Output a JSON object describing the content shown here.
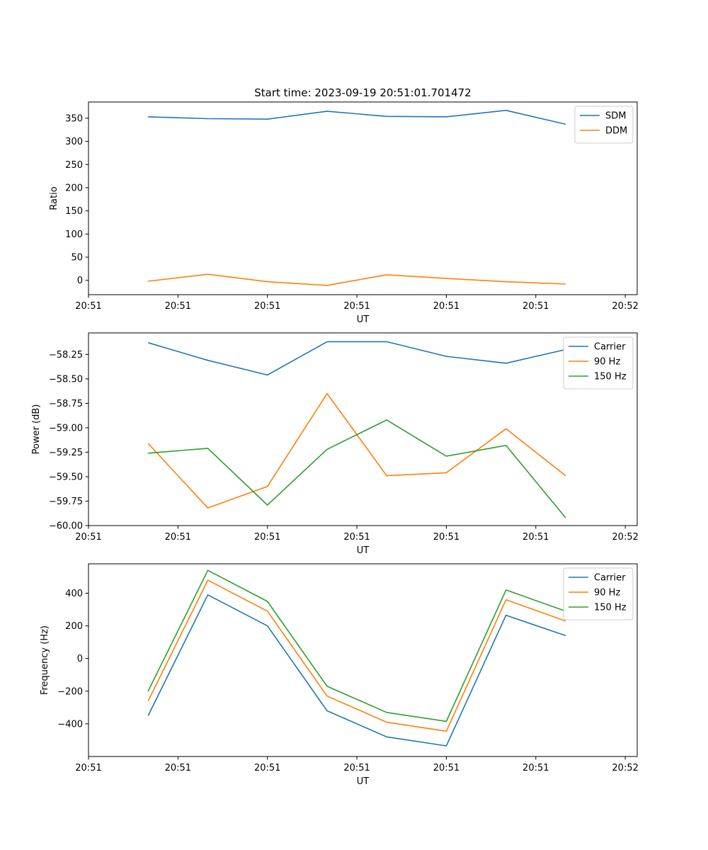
{
  "figure": {
    "title": "Start time: 2023-09-19 20:51:01.701472"
  },
  "colors": {
    "blue": "#1f77b4",
    "orange": "#ff7f0e",
    "green": "#2ca02c"
  },
  "chart_data": [
    {
      "type": "line",
      "title": "Start time: 2023-09-19 20:51:01.701472",
      "xlabel": "UT",
      "ylabel": "Ratio",
      "x": [
        1,
        2,
        3,
        4,
        5,
        6,
        7,
        8
      ],
      "xlim": [
        0,
        9.2
      ],
      "ylim": [
        -31,
        385
      ],
      "xticks": [
        0,
        1.5,
        3,
        4.5,
        6,
        7.5,
        9
      ],
      "xtick_labels": [
        "20:51",
        "20:51",
        "20:51",
        "20:51",
        "20:51",
        "20:51",
        "20:52"
      ],
      "yticks": [
        0,
        50,
        100,
        150,
        200,
        250,
        300,
        350
      ],
      "ytick_labels": [
        "0",
        "50",
        "100",
        "150",
        "200",
        "250",
        "300",
        "350"
      ],
      "legend": "top-right",
      "series": [
        {
          "name": "SDM",
          "color": "#1f77b4",
          "values": [
            353,
            349,
            348,
            365,
            354,
            353,
            367,
            337
          ]
        },
        {
          "name": "DDM",
          "color": "#ff7f0e",
          "values": [
            -2,
            13,
            -3,
            -11,
            12,
            4,
            -3,
            -8
          ]
        }
      ]
    },
    {
      "type": "line",
      "title": "",
      "xlabel": "UT",
      "ylabel": "Power (dB)",
      "x": [
        1,
        2,
        3,
        4,
        5,
        6,
        7,
        8
      ],
      "xlim": [
        0,
        9.2
      ],
      "ylim": [
        -60.0,
        -58.03
      ],
      "xticks": [
        0,
        1.5,
        3,
        4.5,
        6,
        7.5,
        9
      ],
      "xtick_labels": [
        "20:51",
        "20:51",
        "20:51",
        "20:51",
        "20:51",
        "20:51",
        "20:52"
      ],
      "yticks": [
        -60.0,
        -59.75,
        -59.5,
        -59.25,
        -59.0,
        -58.75,
        -58.5,
        -58.25
      ],
      "ytick_labels": [
        "−60.00",
        "−59.75",
        "−59.50",
        "−59.25",
        "−59.00",
        "−58.75",
        "−58.50",
        "−58.25"
      ],
      "legend": "top-right",
      "series": [
        {
          "name": "Carrier",
          "color": "#1f77b4",
          "values": [
            -58.13,
            -58.31,
            -58.46,
            -58.12,
            -58.12,
            -58.27,
            -58.34,
            -58.2
          ]
        },
        {
          "name": "90 Hz",
          "color": "#ff7f0e",
          "values": [
            -59.16,
            -59.82,
            -59.6,
            -58.65,
            -59.49,
            -59.46,
            -59.01,
            -59.49
          ]
        },
        {
          "name": "150 Hz",
          "color": "#2ca02c",
          "values": [
            -59.26,
            -59.21,
            -59.79,
            -59.22,
            -58.92,
            -59.29,
            -59.18,
            -59.92
          ]
        }
      ]
    },
    {
      "type": "line",
      "title": "",
      "xlabel": "UT",
      "ylabel": "Frequency (Hz)",
      "x": [
        1,
        2,
        3,
        4,
        5,
        6,
        7,
        8
      ],
      "xlim": [
        0,
        9.2
      ],
      "ylim": [
        -600,
        580
      ],
      "xticks": [
        0,
        1.5,
        3,
        4.5,
        6,
        7.5,
        9
      ],
      "xtick_labels": [
        "20:51",
        "20:51",
        "20:51",
        "20:51",
        "20:51",
        "20:51",
        "20:52"
      ],
      "yticks": [
        -400,
        -200,
        0,
        200,
        400
      ],
      "ytick_labels": [
        "−400",
        "−200",
        "0",
        "200",
        "400"
      ],
      "legend": "top-right",
      "series": [
        {
          "name": "Carrier",
          "color": "#1f77b4",
          "values": [
            -350,
            390,
            200,
            -320,
            -480,
            -535,
            265,
            140
          ]
        },
        {
          "name": "90 Hz",
          "color": "#ff7f0e",
          "values": [
            -260,
            480,
            290,
            -230,
            -390,
            -445,
            360,
            230
          ]
        },
        {
          "name": "150 Hz",
          "color": "#2ca02c",
          "values": [
            -200,
            540,
            350,
            -170,
            -330,
            -385,
            420,
            290
          ]
        }
      ]
    }
  ]
}
